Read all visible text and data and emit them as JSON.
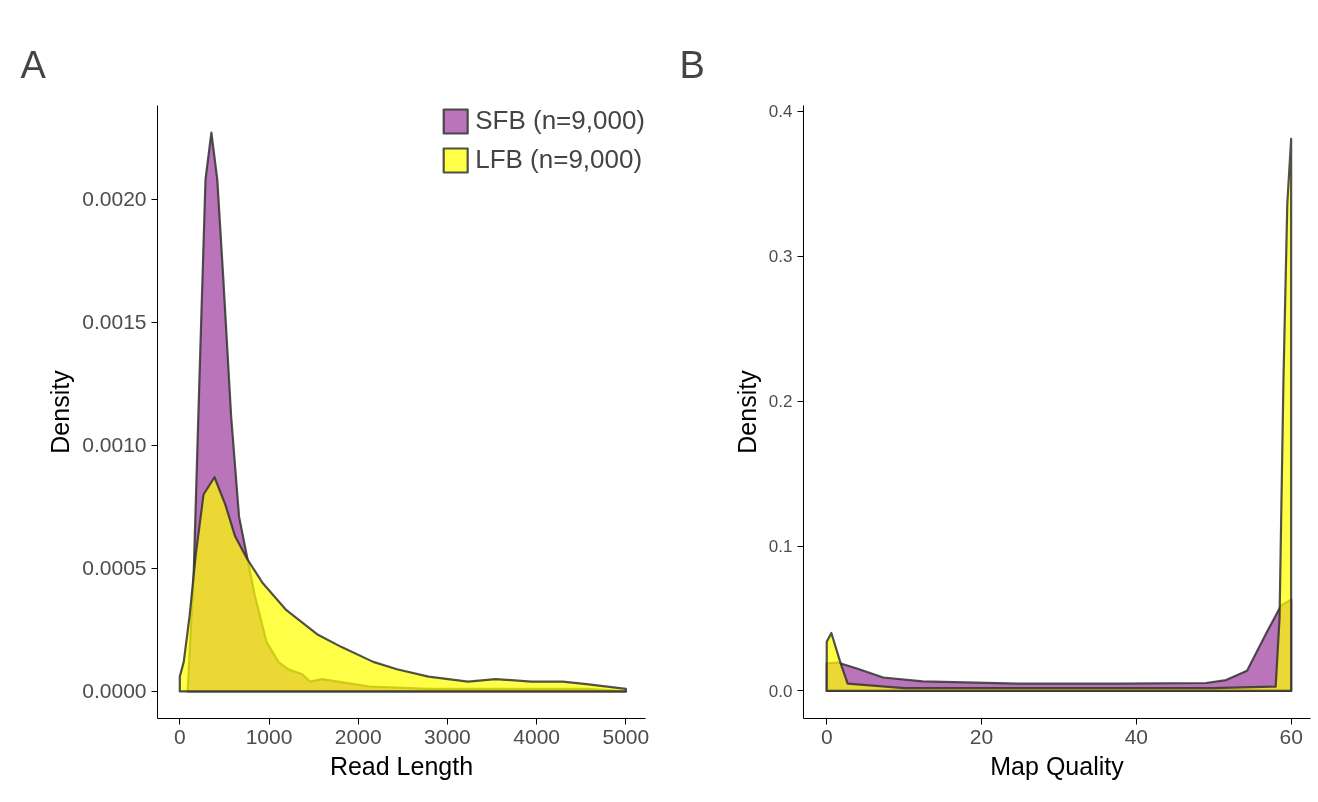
{
  "chart_data": [
    {
      "type": "area",
      "title": "A",
      "xlabel": "Read Length",
      "ylabel": "Density",
      "legend": "top right",
      "xlim": [
        -250,
        5220
      ],
      "ylim": [
        -0.00011,
        0.00238
      ],
      "xticks": [
        0,
        1000,
        2000,
        3000,
        4000,
        5000
      ],
      "yticks": [
        {
          "value": 0,
          "label": "0.0000"
        },
        {
          "value": 0.0005,
          "label": "0.0005"
        },
        {
          "value": 0.001,
          "label": "0.0010"
        },
        {
          "value": 0.0015,
          "label": "0.0015"
        },
        {
          "value": 0.002,
          "label": "0.0020"
        }
      ],
      "series": [
        {
          "name": "SFB (n=9,000)",
          "color": "#a040a0",
          "x": [
            88,
            155,
            221,
            288,
            354,
            420,
            487,
            575,
            664,
            752,
            841,
            973,
            1106,
            1217,
            1372,
            1460,
            1593,
            1770,
            2124,
            2788,
            3673,
            4558,
            5000
          ],
          "values": [
            0,
            0.00047,
            0.00128,
            0.00208,
            0.00227,
            0.00208,
            0.00168,
            0.00112,
            0.00071,
            0.00055,
            0.00039,
            0.0002,
            0.00012,
            9e-05,
            7e-05,
            4e-05,
            5e-05,
            4e-05,
            2e-05,
            1e-05,
            1e-05,
            1e-05,
            0
          ]
        },
        {
          "name": "LFB (n=9,000)",
          "color": "#ffff00",
          "x": [
            0,
            44,
            111,
            177,
            266,
            389,
            509,
            620,
            752,
            929,
            1195,
            1549,
            1814,
            2168,
            2434,
            2788,
            3230,
            3540,
            3938,
            4292,
            4558,
            5000
          ],
          "values": [
            6e-05,
            0.00012,
            0.00031,
            0.00055,
            0.0008,
            0.00087,
            0.00076,
            0.00063,
            0.00054,
            0.00044,
            0.00033,
            0.00023,
            0.00018,
            0.00012,
            9e-05,
            6e-05,
            4e-05,
            5e-05,
            4e-05,
            4e-05,
            3e-05,
            1e-05
          ]
        }
      ]
    },
    {
      "type": "area",
      "title": "B",
      "xlabel": "Map Quality",
      "ylabel": "Density",
      "xlim": [
        -3,
        62.5
      ],
      "ylim": [
        -0.019,
        0.404
      ],
      "xticks": [
        0,
        20,
        40,
        60
      ],
      "yticks": [
        {
          "value": 0,
          "label": "0.0"
        },
        {
          "value": 0.1,
          "label": "0.1"
        },
        {
          "value": 0.2,
          "label": "0.2"
        },
        {
          "value": 0.3,
          "label": "0.3"
        },
        {
          "value": 0.4,
          "label": "0.4"
        }
      ],
      "series": [
        {
          "color": "#a040a0",
          "x": [
            0,
            1.4,
            3.9,
            7.3,
            12.4,
            25,
            38,
            49,
            51.6,
            54.3,
            56.9,
            58.7,
            60
          ],
          "values": [
            0.019,
            0.0196,
            0.0155,
            0.0093,
            0.0066,
            0.005,
            0.005,
            0.0055,
            0.0075,
            0.014,
            0.041,
            0.059,
            0.063
          ]
        },
        {
          "color": "#ffff00",
          "x": [
            0,
            0.6,
            1.8,
            2.7,
            10,
            30,
            50,
            58,
            58.5,
            59,
            59.5,
            60
          ],
          "values": [
            0.034,
            0.04,
            0.019,
            0.005,
            0.002,
            0.002,
            0.002,
            0.003,
            0.05,
            0.213,
            0.336,
            0.381
          ]
        }
      ]
    }
  ]
}
